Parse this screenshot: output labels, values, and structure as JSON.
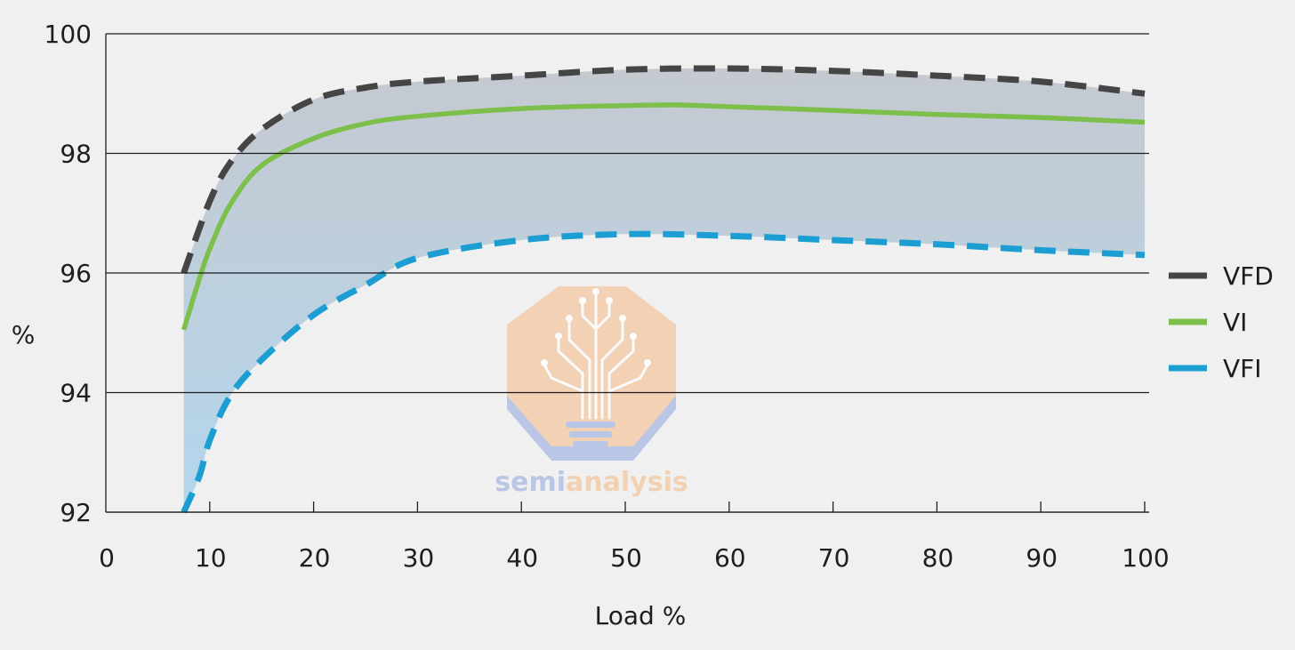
{
  "chart_data": {
    "type": "line",
    "title": "",
    "xlabel": "Load %",
    "ylabel": "%",
    "xlim": [
      0,
      100
    ],
    "ylim": [
      92,
      100
    ],
    "x_ticks": [
      0,
      10,
      20,
      30,
      40,
      50,
      60,
      70,
      80,
      90,
      100
    ],
    "y_ticks": [
      92,
      94,
      96,
      98,
      100
    ],
    "grid": "horizontal",
    "legend_position": "right",
    "series": [
      {
        "name": "VFD",
        "color": "#454545",
        "style": "dashed",
        "points": [
          [
            7.5,
            96.0
          ],
          [
            10,
            97.2
          ],
          [
            12,
            97.85
          ],
          [
            15,
            98.4
          ],
          [
            20,
            98.9
          ],
          [
            25,
            99.1
          ],
          [
            30,
            99.2
          ],
          [
            40,
            99.3
          ],
          [
            50,
            99.4
          ],
          [
            60,
            99.42
          ],
          [
            70,
            99.38
          ],
          [
            80,
            99.3
          ],
          [
            90,
            99.2
          ],
          [
            100,
            99.0
          ]
        ]
      },
      {
        "name": "VI",
        "color": "#7cbf4a",
        "style": "solid",
        "points": [
          [
            7.5,
            95.05
          ],
          [
            9,
            95.9
          ],
          [
            10,
            96.4
          ],
          [
            12,
            97.15
          ],
          [
            15,
            97.8
          ],
          [
            20,
            98.25
          ],
          [
            25,
            98.5
          ],
          [
            30,
            98.62
          ],
          [
            40,
            98.75
          ],
          [
            50,
            98.8
          ],
          [
            55,
            98.81
          ],
          [
            60,
            98.78
          ],
          [
            70,
            98.72
          ],
          [
            80,
            98.65
          ],
          [
            90,
            98.6
          ],
          [
            100,
            98.52
          ]
        ]
      },
      {
        "name": "VFI",
        "color": "#1d9ed3",
        "style": "dashed",
        "points": [
          [
            7.5,
            92.0
          ],
          [
            9,
            92.6
          ],
          [
            10,
            93.2
          ],
          [
            12,
            93.95
          ],
          [
            15,
            94.55
          ],
          [
            20,
            95.3
          ],
          [
            25,
            95.8
          ],
          [
            30,
            96.25
          ],
          [
            40,
            96.55
          ],
          [
            50,
            96.65
          ],
          [
            60,
            96.62
          ],
          [
            70,
            96.55
          ],
          [
            80,
            96.48
          ],
          [
            90,
            96.38
          ],
          [
            100,
            96.3
          ]
        ]
      }
    ]
  },
  "watermark": {
    "text_part1": "semi",
    "text_part2": "analysis",
    "color1": "#a8b9e2",
    "color2": "#f3c79f"
  }
}
